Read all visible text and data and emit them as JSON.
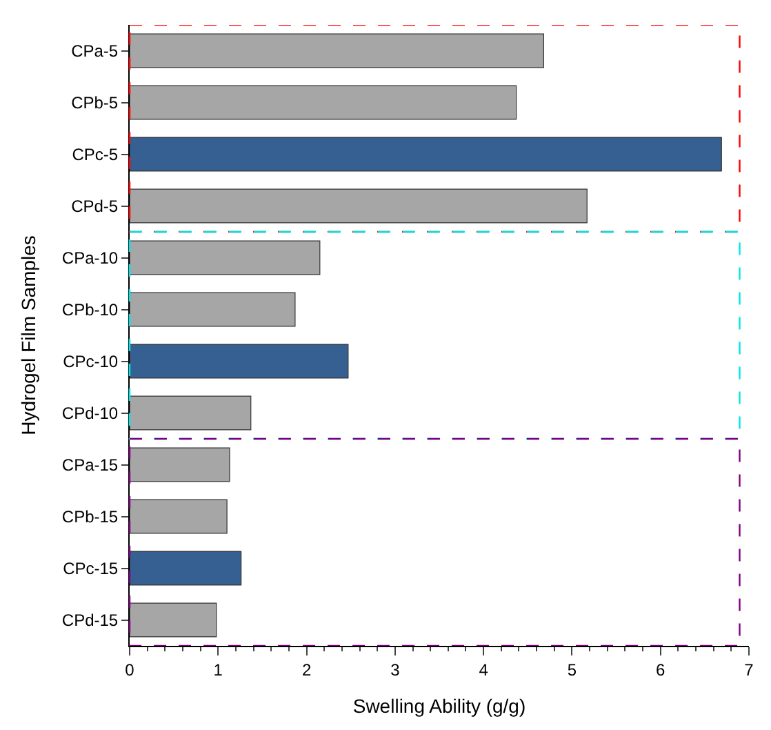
{
  "chart_data": {
    "type": "bar",
    "orientation": "horizontal",
    "xlabel": "Swelling Ability (g/g)",
    "ylabel": "Hydrogel Film Samples",
    "categories": [
      "CPa-5",
      "CPb-5",
      "CPc-5",
      "CPd-5",
      "CPa-10",
      "CPb-10",
      "CPc-10",
      "CPd-10",
      "CPa-15",
      "CPb-15",
      "CPc-15",
      "CPd-15"
    ],
    "values": [
      4.68,
      4.37,
      6.69,
      5.17,
      2.15,
      1.87,
      2.47,
      1.37,
      1.13,
      1.1,
      1.26,
      0.98
    ],
    "colors": [
      "#a6a6a6",
      "#a6a6a6",
      "#376092",
      "#a6a6a6",
      "#a6a6a6",
      "#a6a6a6",
      "#376092",
      "#a6a6a6",
      "#a6a6a6",
      "#a6a6a6",
      "#376092",
      "#a6a6a6"
    ],
    "xlim": [
      0,
      7
    ],
    "xticks": [
      0,
      1,
      2,
      3,
      4,
      5,
      6,
      7
    ],
    "legend": false
  }
}
